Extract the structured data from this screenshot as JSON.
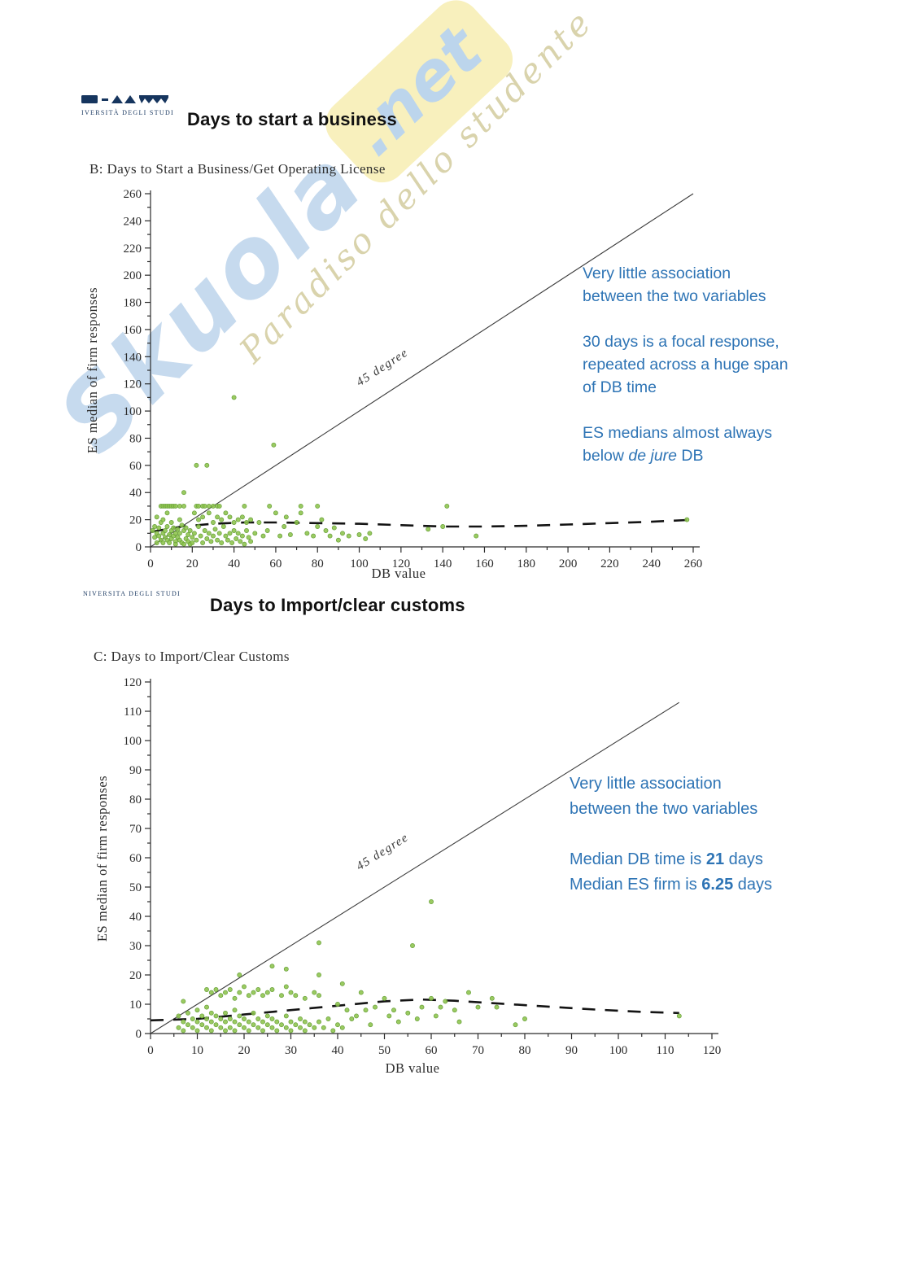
{
  "watermark": {
    "brand": "Skuola",
    "domain": ".net",
    "tagline": "Paradiso dello studente"
  },
  "slides": [
    {
      "logo_text": "IVERSITÀ DEGLI STUDI",
      "title": "Days to start a business"
    },
    {
      "logo_text": "NIVERSITA DEGLI STUDI",
      "title": "Days to Import/clear customs"
    }
  ],
  "colors": {
    "annotation_blue": "#2e74b5",
    "point_green": "#8cc34b",
    "point_green_edge": "#68a03a",
    "watermark_yellow": "#f8f0bd",
    "logo_navy": "#16355e"
  },
  "annotations": [
    [
      [
        [
          {
            "text": "Very little association"
          }
        ],
        [
          {
            "text": "between the two variables"
          }
        ]
      ],
      [
        [
          {
            "text": "30 days is a focal response,"
          }
        ],
        [
          {
            "text": "repeated across a huge span"
          }
        ],
        [
          {
            "text": "of DB time"
          }
        ]
      ],
      [
        [
          {
            "text": "ES medians almost always"
          }
        ],
        [
          {
            "text": "below "
          },
          {
            "text": "de jure",
            "style": "italic"
          },
          {
            "text": " DB"
          }
        ]
      ]
    ],
    [
      [
        [
          {
            "text": "Very little association"
          }
        ],
        [
          {
            "text": "between the two variables"
          }
        ]
      ],
      [
        [
          {
            "text": "Median DB time is "
          },
          {
            "text": "21",
            "style": "bold"
          },
          {
            "text": " days"
          }
        ],
        [
          {
            "text": "Median ES firm is "
          },
          {
            "text": "6.25",
            "style": "bold"
          },
          {
            "text": " days"
          }
        ]
      ]
    ]
  ],
  "chart_data": [
    {
      "type": "scatter",
      "title": "B: Days to Start a Business/Get Operating License",
      "xlabel": "DB value",
      "ylabel": "ES median of firm responses",
      "xlim": [
        0,
        260
      ],
      "ylim": [
        0,
        260
      ],
      "xtick_step": 20,
      "ytick_step": 20,
      "minor_step_x": 10,
      "minor_step_y": 10,
      "grid": false,
      "diagonal": {
        "from": [
          0,
          0
        ],
        "to": [
          260,
          260
        ],
        "label": "45 degree"
      },
      "trend_dashed": [
        [
          0,
          11
        ],
        [
          15,
          15
        ],
        [
          30,
          17
        ],
        [
          45,
          18
        ],
        [
          60,
          18
        ],
        [
          80,
          17.5
        ],
        [
          100,
          17
        ],
        [
          120,
          16
        ],
        [
          140,
          15
        ],
        [
          160,
          15
        ],
        [
          180,
          15.5
        ],
        [
          200,
          16.5
        ],
        [
          220,
          17.5
        ],
        [
          240,
          18.5
        ],
        [
          260,
          20
        ]
      ],
      "points": [
        [
          1,
          12
        ],
        [
          2,
          7
        ],
        [
          2,
          15
        ],
        [
          3,
          10
        ],
        [
          3,
          3
        ],
        [
          3,
          22
        ],
        [
          4,
          14
        ],
        [
          4,
          8
        ],
        [
          5,
          5
        ],
        [
          5,
          18
        ],
        [
          6,
          10
        ],
        [
          6,
          3
        ],
        [
          6,
          20
        ],
        [
          7,
          12
        ],
        [
          7,
          7
        ],
        [
          8,
          15
        ],
        [
          8,
          5
        ],
        [
          8,
          25
        ],
        [
          9,
          9
        ],
        [
          9,
          3
        ],
        [
          10,
          12
        ],
        [
          10,
          6
        ],
        [
          10,
          18
        ],
        [
          11,
          8
        ],
        [
          11,
          14
        ],
        [
          12,
          4
        ],
        [
          12,
          10
        ],
        [
          12,
          2
        ],
        [
          13,
          7
        ],
        [
          13,
          13
        ],
        [
          14,
          5
        ],
        [
          14,
          10
        ],
        [
          14,
          20
        ],
        [
          15,
          3
        ],
        [
          15,
          16
        ],
        [
          16,
          12
        ],
        [
          16,
          2
        ],
        [
          16,
          40
        ],
        [
          17,
          6
        ],
        [
          17,
          14
        ],
        [
          18,
          4
        ],
        [
          18,
          9
        ],
        [
          19,
          2
        ],
        [
          19,
          12
        ],
        [
          20,
          7
        ],
        [
          20,
          3
        ],
        [
          5,
          30
        ],
        [
          6,
          30
        ],
        [
          7,
          30
        ],
        [
          8,
          30
        ],
        [
          9,
          30
        ],
        [
          10,
          30
        ],
        [
          11,
          30
        ],
        [
          12,
          30
        ],
        [
          14,
          30
        ],
        [
          16,
          30
        ],
        [
          22,
          30
        ],
        [
          23,
          30
        ],
        [
          25,
          30
        ],
        [
          26,
          30
        ],
        [
          28,
          30
        ],
        [
          30,
          30
        ],
        [
          32,
          30
        ],
        [
          33,
          30
        ],
        [
          45,
          30
        ],
        [
          57,
          30
        ],
        [
          72,
          30
        ],
        [
          80,
          30
        ],
        [
          142,
          30
        ],
        [
          21,
          25
        ],
        [
          23,
          20
        ],
        [
          25,
          22
        ],
        [
          28,
          25
        ],
        [
          30,
          18
        ],
        [
          32,
          22
        ],
        [
          34,
          20
        ],
        [
          36,
          25
        ],
        [
          38,
          22
        ],
        [
          40,
          18
        ],
        [
          42,
          20
        ],
        [
          44,
          22
        ],
        [
          46,
          18
        ],
        [
          48,
          20
        ],
        [
          21,
          10
        ],
        [
          22,
          5
        ],
        [
          23,
          15
        ],
        [
          24,
          8
        ],
        [
          25,
          3
        ],
        [
          26,
          12
        ],
        [
          27,
          6
        ],
        [
          28,
          10
        ],
        [
          29,
          4
        ],
        [
          30,
          8
        ],
        [
          31,
          13
        ],
        [
          32,
          5
        ],
        [
          33,
          10
        ],
        [
          34,
          3
        ],
        [
          35,
          15
        ],
        [
          36,
          8
        ],
        [
          37,
          5
        ],
        [
          38,
          10
        ],
        [
          39,
          3
        ],
        [
          40,
          12
        ],
        [
          41,
          6
        ],
        [
          42,
          10
        ],
        [
          43,
          4
        ],
        [
          44,
          8
        ],
        [
          45,
          2
        ],
        [
          46,
          12
        ],
        [
          47,
          7
        ],
        [
          48,
          4
        ],
        [
          50,
          10
        ],
        [
          52,
          18
        ],
        [
          54,
          8
        ],
        [
          56,
          12
        ],
        [
          59,
          75
        ],
        [
          60,
          25
        ],
        [
          62,
          8
        ],
        [
          64,
          15
        ],
        [
          65,
          22
        ],
        [
          67,
          9
        ],
        [
          70,
          18
        ],
        [
          72,
          25
        ],
        [
          75,
          10
        ],
        [
          78,
          8
        ],
        [
          80,
          15
        ],
        [
          82,
          20
        ],
        [
          84,
          12
        ],
        [
          86,
          8
        ],
        [
          88,
          14
        ],
        [
          90,
          5
        ],
        [
          92,
          10
        ],
        [
          95,
          8
        ],
        [
          100,
          9
        ],
        [
          103,
          6
        ],
        [
          105,
          10
        ],
        [
          133,
          13
        ],
        [
          140,
          15
        ],
        [
          156,
          8
        ],
        [
          257,
          20
        ],
        [
          22,
          60
        ],
        [
          27,
          60
        ],
        [
          40,
          110
        ]
      ]
    },
    {
      "type": "scatter",
      "title": "C: Days to Import/Clear Customs",
      "xlabel": "DB value",
      "ylabel": "ES median of firm responses",
      "xlim": [
        0,
        120
      ],
      "ylim": [
        0,
        120
      ],
      "xtick_step": 10,
      "ytick_step": 10,
      "minor_step_x": 5,
      "minor_step_y": 5,
      "grid": false,
      "diagonal": {
        "from": [
          0,
          0
        ],
        "to": [
          113,
          113
        ],
        "label": "45 degree"
      },
      "trend_dashed": [
        [
          0,
          4.5
        ],
        [
          10,
          5
        ],
        [
          20,
          6.5
        ],
        [
          30,
          8
        ],
        [
          40,
          9.5
        ],
        [
          50,
          11
        ],
        [
          58,
          11.6
        ],
        [
          65,
          11.2
        ],
        [
          75,
          10.2
        ],
        [
          85,
          9.2
        ],
        [
          95,
          8.2
        ],
        [
          105,
          7.4
        ],
        [
          113,
          7
        ]
      ],
      "points": [
        [
          6,
          2
        ],
        [
          6,
          6
        ],
        [
          7,
          4
        ],
        [
          7,
          1
        ],
        [
          8,
          3
        ],
        [
          8,
          7
        ],
        [
          9,
          2
        ],
        [
          9,
          5
        ],
        [
          10,
          1
        ],
        [
          10,
          4
        ],
        [
          10,
          8
        ],
        [
          11,
          3
        ],
        [
          11,
          6
        ],
        [
          12,
          2
        ],
        [
          12,
          5
        ],
        [
          12,
          9
        ],
        [
          13,
          1
        ],
        [
          13,
          4
        ],
        [
          13,
          7
        ],
        [
          14,
          3
        ],
        [
          14,
          6
        ],
        [
          15,
          2
        ],
        [
          15,
          5
        ],
        [
          16,
          1
        ],
        [
          16,
          4
        ],
        [
          16,
          7
        ],
        [
          17,
          2
        ],
        [
          17,
          5
        ],
        [
          18,
          1
        ],
        [
          18,
          4
        ],
        [
          18,
          8
        ],
        [
          19,
          3
        ],
        [
          19,
          6
        ],
        [
          20,
          2
        ],
        [
          20,
          5
        ],
        [
          21,
          1
        ],
        [
          21,
          4
        ],
        [
          22,
          3
        ],
        [
          22,
          7
        ],
        [
          23,
          2
        ],
        [
          23,
          5
        ],
        [
          24,
          1
        ],
        [
          24,
          4
        ],
        [
          25,
          3
        ],
        [
          25,
          6
        ],
        [
          26,
          2
        ],
        [
          26,
          5
        ],
        [
          27,
          1
        ],
        [
          27,
          4
        ],
        [
          28,
          3
        ],
        [
          29,
          2
        ],
        [
          29,
          6
        ],
        [
          30,
          1
        ],
        [
          30,
          4
        ],
        [
          31,
          3
        ],
        [
          32,
          2
        ],
        [
          32,
          5
        ],
        [
          33,
          1
        ],
        [
          33,
          4
        ],
        [
          34,
          3
        ],
        [
          35,
          2
        ],
        [
          36,
          4
        ],
        [
          37,
          2
        ],
        [
          38,
          5
        ],
        [
          39,
          1
        ],
        [
          40,
          3
        ],
        [
          41,
          2
        ],
        [
          7,
          11
        ],
        [
          12,
          15
        ],
        [
          13,
          14
        ],
        [
          14,
          15
        ],
        [
          15,
          13
        ],
        [
          16,
          14
        ],
        [
          17,
          15
        ],
        [
          18,
          12
        ],
        [
          19,
          14
        ],
        [
          20,
          16
        ],
        [
          21,
          13
        ],
        [
          22,
          14
        ],
        [
          23,
          15
        ],
        [
          24,
          13
        ],
        [
          25,
          14
        ],
        [
          26,
          15
        ],
        [
          28,
          13
        ],
        [
          29,
          16
        ],
        [
          30,
          14
        ],
        [
          31,
          13
        ],
        [
          33,
          12
        ],
        [
          35,
          14
        ],
        [
          36,
          13
        ],
        [
          40,
          10
        ],
        [
          42,
          8
        ],
        [
          43,
          5
        ],
        [
          44,
          6
        ],
        [
          45,
          14
        ],
        [
          46,
          8
        ],
        [
          47,
          3
        ],
        [
          48,
          9
        ],
        [
          50,
          12
        ],
        [
          51,
          6
        ],
        [
          52,
          8
        ],
        [
          53,
          4
        ],
        [
          55,
          7
        ],
        [
          57,
          5
        ],
        [
          58,
          9
        ],
        [
          60,
          12
        ],
        [
          61,
          6
        ],
        [
          62,
          9
        ],
        [
          63,
          11
        ],
        [
          65,
          8
        ],
        [
          66,
          4
        ],
        [
          68,
          14
        ],
        [
          70,
          9
        ],
        [
          73,
          12
        ],
        [
          74,
          9
        ],
        [
          78,
          3
        ],
        [
          80,
          5
        ],
        [
          113,
          6
        ],
        [
          19,
          20
        ],
        [
          26,
          23
        ],
        [
          29,
          22
        ],
        [
          36,
          31
        ],
        [
          36,
          20
        ],
        [
          41,
          17
        ],
        [
          56,
          30
        ],
        [
          60,
          45
        ]
      ]
    }
  ]
}
